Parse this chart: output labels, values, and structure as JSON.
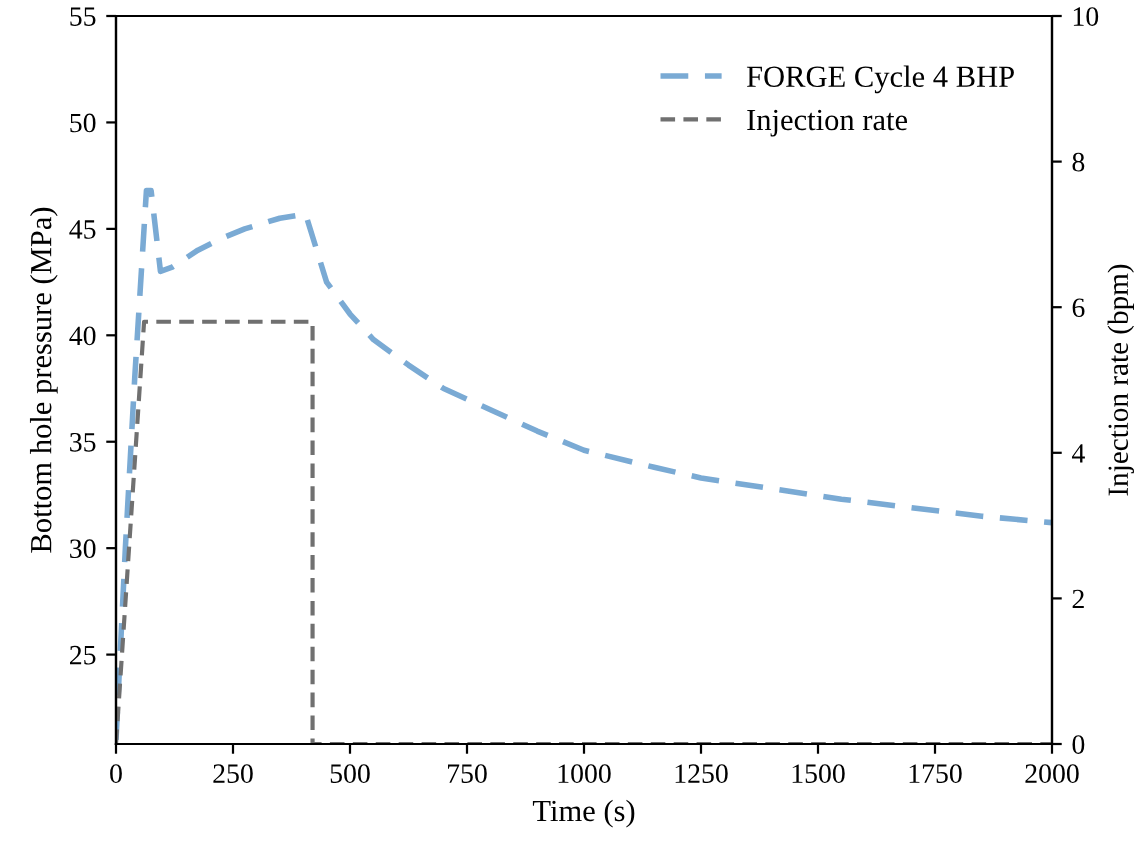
{
  "chart_data": {
    "type": "line",
    "xlabel": "Time (s)",
    "ylabel": "Bottom hole pressure (MPa)",
    "y2label": "Injection rate (bpm)",
    "xlim": [
      0,
      2000
    ],
    "xticks": [
      0,
      250,
      500,
      750,
      1000,
      1250,
      1500,
      1750,
      2000
    ],
    "ylim": [
      20.8,
      55
    ],
    "yticks": [
      25,
      30,
      35,
      40,
      45,
      50,
      55
    ],
    "y2lim": [
      0,
      10
    ],
    "y2ticks": [
      0,
      2,
      4,
      6,
      8,
      10
    ],
    "legend": "top right",
    "grid": false,
    "line_style": "dashed",
    "series": [
      {
        "name": "FORGE Cycle 4 BHP",
        "color": "#7aaad4",
        "x": [
          0,
          20,
          40,
          65,
          75,
          95,
          120,
          175,
          220,
          275,
          350,
          405,
          450,
          500,
          550,
          625,
          700,
          800,
          900,
          1000,
          1150,
          1250,
          1400,
          1550,
          1700,
          1850,
          2000
        ],
        "values": [
          21,
          30,
          38,
          46.8,
          46.8,
          43,
          43.2,
          44,
          44.5,
          45,
          45.5,
          45.7,
          42.5,
          41,
          39.8,
          38.6,
          37.5,
          36.5,
          35.5,
          34.6,
          33.8,
          33.3,
          32.8,
          32.3,
          31.9,
          31.5,
          31.2
        ]
      },
      {
        "name": "Injection rate",
        "color": "#707070",
        "axis": "y2",
        "x": [
          0,
          60,
          420,
          420,
          2000
        ],
        "values": [
          0,
          5.8,
          5.8,
          0,
          0
        ]
      }
    ]
  }
}
